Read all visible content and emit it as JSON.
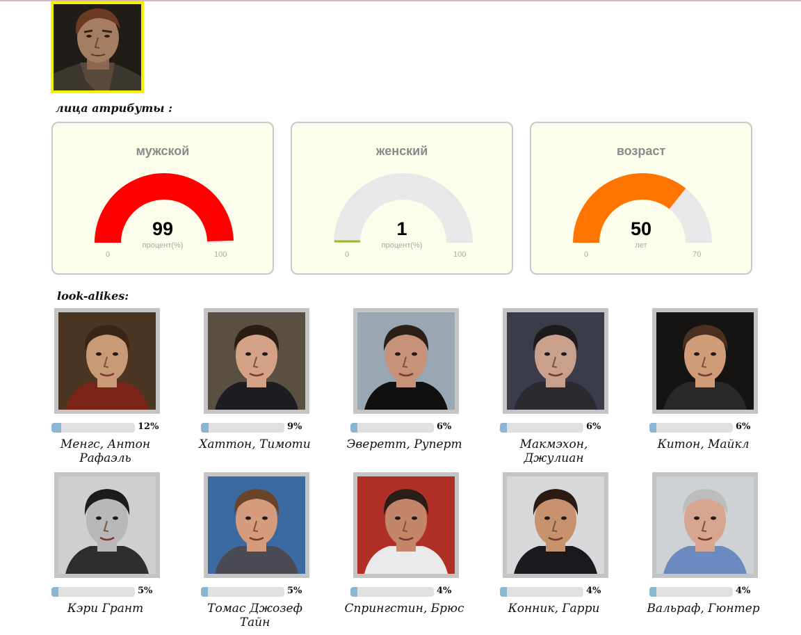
{
  "attributes_title": "лица атрибуты :",
  "lookalikes_title": "look-alikes:",
  "gauges": [
    {
      "title": "мужской",
      "value": "99",
      "unit": "процент(%)",
      "min": "0",
      "max": "100",
      "fraction": 0.99,
      "color": "#ff0000"
    },
    {
      "title": "женский",
      "value": "1",
      "unit": "процент(%)",
      "min": "0",
      "max": "100",
      "fraction": 0.01,
      "color": "#99bb22"
    },
    {
      "title": "возраст",
      "value": "50",
      "unit": "лет",
      "min": "0",
      "max": "70",
      "fraction": 0.714,
      "color": "#ff7500"
    }
  ],
  "gauge_track_color": "#e8e8e8",
  "lookalikes": [
    {
      "name": "Менгс, Антон Рафаэль",
      "percent": "12%",
      "score": 0.12,
      "bg": "#4a3522",
      "skin": "#c99a76",
      "hair": "#3a2514",
      "shirt": "#7a2418"
    },
    {
      "name": "Хаттон, Тимоти",
      "percent": "9%",
      "score": 0.09,
      "bg": "#5a5042",
      "skin": "#d4a286",
      "hair": "#2a1d14",
      "shirt": "#1e1e22"
    },
    {
      "name": "Эверетт, Руперт",
      "percent": "6%",
      "score": 0.06,
      "bg": "#9aa6b2",
      "skin": "#c89278",
      "hair": "#2a2018",
      "shirt": "#101010"
    },
    {
      "name": "Макмэхон, Джулиан",
      "percent": "6%",
      "score": 0.06,
      "bg": "#3a3c4a",
      "skin": "#c8a08c",
      "hair": "#1c1a1c",
      "shirt": "#2a2a30"
    },
    {
      "name": "Китон, Майкл",
      "percent": "6%",
      "score": 0.06,
      "bg": "#161412",
      "skin": "#d09c78",
      "hair": "#4a3020",
      "shirt": "#2a2826"
    },
    {
      "name": "Кэри Грант",
      "percent": "5%",
      "score": 0.05,
      "bg": "#cfcfcf",
      "skin": "#b8b8b8",
      "hair": "#1c1c1c",
      "shirt": "#2e2e2e"
    },
    {
      "name": "Томас Джозеф Тайн",
      "percent": "5%",
      "score": 0.05,
      "bg": "#3a6aa0",
      "skin": "#d49c7c",
      "hair": "#6a4428",
      "shirt": "#4a4a52"
    },
    {
      "name": "Спрингстин, Брюс",
      "percent": "4%",
      "score": 0.04,
      "bg": "#b03028",
      "skin": "#c4866a",
      "hair": "#2a1e18",
      "shirt": "#eaeaea"
    },
    {
      "name": "Конник, Гарри",
      "percent": "4%",
      "score": 0.04,
      "bg": "#d8d8da",
      "skin": "#c8926e",
      "hair": "#2a1c14",
      "shirt": "#1a1a1e"
    },
    {
      "name": "Вальраф, Гюнтер",
      "percent": "4%",
      "score": 0.04,
      "bg": "#cfd2d4",
      "skin": "#d8a690",
      "hair": "#bdbdbd",
      "shirt": "#6a8ac0"
    }
  ]
}
